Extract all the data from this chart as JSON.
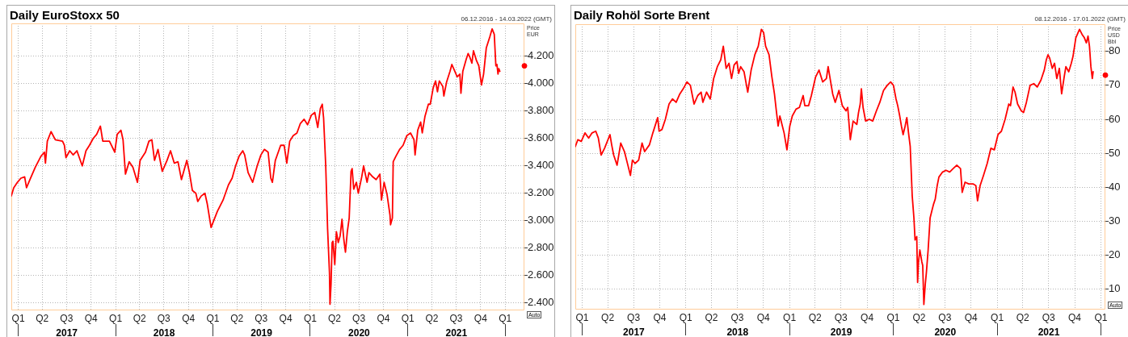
{
  "chart_data": [
    {
      "type": "line",
      "title": "Daily EuroStoxx 50",
      "subtitle": "06.12.2016 - 14.03.2022 (GMT)",
      "ylabel": "Price EUR",
      "annotations": [
        "Auto"
      ],
      "grid": true,
      "marker": "none",
      "line_style": "solid",
      "xlim": [
        "2016-12-06",
        "2022-03-14"
      ],
      "xticks": [
        {
          "value": "2017-01-01",
          "label": "Q1"
        },
        {
          "value": "2017-04-01",
          "label": "Q2"
        },
        {
          "value": "2017-07-01",
          "label": "Q3"
        },
        {
          "value": "2017-10-01",
          "label": "Q4"
        },
        {
          "value": "2018-01-01",
          "label": "Q1"
        },
        {
          "value": "2018-04-01",
          "label": "Q2"
        },
        {
          "value": "2018-07-01",
          "label": "Q3"
        },
        {
          "value": "2018-10-01",
          "label": "Q4"
        },
        {
          "value": "2019-01-01",
          "label": "Q1"
        },
        {
          "value": "2019-04-01",
          "label": "Q2"
        },
        {
          "value": "2019-07-01",
          "label": "Q3"
        },
        {
          "value": "2019-10-01",
          "label": "Q4"
        },
        {
          "value": "2020-01-01",
          "label": "Q1"
        },
        {
          "value": "2020-04-01",
          "label": "Q2"
        },
        {
          "value": "2020-07-01",
          "label": "Q3"
        },
        {
          "value": "2020-10-01",
          "label": "Q4"
        },
        {
          "value": "2021-01-01",
          "label": "Q1"
        },
        {
          "value": "2021-04-01",
          "label": "Q2"
        },
        {
          "value": "2021-07-01",
          "label": "Q3"
        },
        {
          "value": "2021-10-01",
          "label": "Q4"
        },
        {
          "value": "2022-01-01",
          "label": "Q1"
        }
      ],
      "x2lim": [
        "2016-12-06",
        "2022-03-14"
      ],
      "x2ticks": [
        {
          "value": "2017-01-01",
          "label": null
        },
        {
          "value": "2017-07-02",
          "label": "2017"
        },
        {
          "value": "2018-01-01",
          "label": null
        },
        {
          "value": "2018-07-02",
          "label": "2018"
        },
        {
          "value": "2019-01-01",
          "label": null
        },
        {
          "value": "2019-07-02",
          "label": "2019"
        },
        {
          "value": "2020-01-01",
          "label": null
        },
        {
          "value": "2020-07-02",
          "label": "2020"
        },
        {
          "value": "2021-01-01",
          "label": null
        },
        {
          "value": "2021-07-02",
          "label": "2021"
        },
        {
          "value": "2022-01-01",
          "label": null
        }
      ],
      "ylim": [
        2345,
        4440
      ],
      "yticks": [
        {
          "value": 2400,
          "label": "2.400"
        },
        {
          "value": 2600,
          "label": "2.600"
        },
        {
          "value": 2800,
          "label": "2.800"
        },
        {
          "value": 3000,
          "label": "3.000"
        },
        {
          "value": 3200,
          "label": "3.200"
        },
        {
          "value": 3400,
          "label": "3.400"
        },
        {
          "value": 3600,
          "label": "3.600"
        },
        {
          "value": 3800,
          "label": "3.800"
        },
        {
          "value": 4000,
          "label": "4.000"
        },
        {
          "value": 4200,
          "label": "4.200"
        }
      ],
      "x": [
        "2016-12-06",
        "2016-12-15",
        "2016-12-29",
        "2017-01-11",
        "2017-01-25",
        "2017-02-01",
        "2017-02-14",
        "2017-03-06",
        "2017-03-27",
        "2017-04-09",
        "2017-04-13",
        "2017-04-20",
        "2017-05-04",
        "2017-05-20",
        "2017-06-16",
        "2017-06-23",
        "2017-06-29",
        "2017-07-13",
        "2017-07-26",
        "2017-08-09",
        "2017-08-29",
        "2017-09-12",
        "2017-09-25",
        "2017-10-09",
        "2017-10-22",
        "2017-11-05",
        "2017-11-14",
        "2017-12-09",
        "2017-12-29",
        "2018-01-07",
        "2018-01-21",
        "2018-01-29",
        "2018-02-07",
        "2018-02-21",
        "2018-03-07",
        "2018-03-24",
        "2018-04-03",
        "2018-04-23",
        "2018-05-06",
        "2018-05-17",
        "2018-05-27",
        "2018-06-09",
        "2018-06-25",
        "2018-07-13",
        "2018-07-26",
        "2018-08-09",
        "2018-08-23",
        "2018-09-05",
        "2018-09-25",
        "2018-10-05",
        "2018-10-16",
        "2018-10-29",
        "2018-11-05",
        "2018-11-18",
        "2018-12-02",
        "2018-12-11",
        "2018-12-25",
        "2019-01-18",
        "2019-02-08",
        "2019-02-28",
        "2019-03-14",
        "2019-03-27",
        "2019-04-09",
        "2019-04-23",
        "2019-04-30",
        "2019-05-13",
        "2019-05-30",
        "2019-06-16",
        "2019-06-30",
        "2019-07-13",
        "2019-07-27",
        "2019-08-06",
        "2019-08-12",
        "2019-08-23",
        "2019-09-12",
        "2019-09-25",
        "2019-10-05",
        "2019-10-16",
        "2019-10-29",
        "2019-11-12",
        "2019-11-25",
        "2019-12-09",
        "2019-12-22",
        "2020-01-05",
        "2020-01-18",
        "2020-01-29",
        "2020-02-08",
        "2020-02-15",
        "2020-02-20",
        "2020-02-28",
        "2020-03-06",
        "2020-03-13",
        "2020-03-15",
        "2020-03-19",
        "2020-03-23",
        "2020-03-26",
        "2020-04-02",
        "2020-04-08",
        "2020-04-15",
        "2020-04-22",
        "2020-04-29",
        "2020-05-06",
        "2020-05-12",
        "2020-05-19",
        "2020-05-26",
        "2020-06-02",
        "2020-06-06",
        "2020-06-12",
        "2020-06-22",
        "2020-06-29",
        "2020-07-12",
        "2020-07-19",
        "2020-08-01",
        "2020-08-08",
        "2020-08-22",
        "2020-09-04",
        "2020-09-18",
        "2020-09-24",
        "2020-10-04",
        "2020-10-15",
        "2020-10-26",
        "2020-10-28",
        "2020-11-04",
        "2020-11-07",
        "2020-11-17",
        "2020-12-01",
        "2020-12-14",
        "2020-12-28",
        "2021-01-11",
        "2021-01-24",
        "2021-01-28",
        "2021-02-07",
        "2021-02-18",
        "2021-02-24",
        "2021-03-06",
        "2021-03-19",
        "2021-03-26",
        "2021-04-06",
        "2021-04-15",
        "2021-04-22",
        "2021-04-29",
        "2021-05-12",
        "2021-05-16",
        "2021-05-26",
        "2021-06-08",
        "2021-06-15",
        "2021-06-26",
        "2021-07-05",
        "2021-07-15",
        "2021-07-19",
        "2021-07-26",
        "2021-08-08",
        "2021-08-15",
        "2021-08-22",
        "2021-08-29",
        "2021-09-04",
        "2021-09-15",
        "2021-09-24",
        "2021-10-04",
        "2021-10-12",
        "2021-10-22",
        "2021-11-04",
        "2021-11-13",
        "2021-11-21",
        "2021-11-27",
        "2021-12-01",
        "2021-12-05",
        "2021-12-08",
        "2021-12-12"
      ],
      "series": [
        {
          "color": "#ff0000",
          "values": [
            3180,
            3240,
            3280,
            3310,
            3320,
            3240,
            3300,
            3390,
            3470,
            3500,
            3420,
            3580,
            3650,
            3590,
            3580,
            3550,
            3460,
            3510,
            3480,
            3510,
            3400,
            3510,
            3550,
            3600,
            3630,
            3690,
            3580,
            3580,
            3500,
            3630,
            3660,
            3590,
            3340,
            3430,
            3390,
            3280,
            3440,
            3500,
            3580,
            3590,
            3440,
            3520,
            3360,
            3440,
            3510,
            3420,
            3430,
            3300,
            3440,
            3350,
            3220,
            3200,
            3140,
            3180,
            3200,
            3120,
            2950,
            3070,
            3150,
            3260,
            3310,
            3400,
            3470,
            3510,
            3480,
            3350,
            3280,
            3400,
            3480,
            3520,
            3500,
            3310,
            3280,
            3440,
            3550,
            3550,
            3420,
            3580,
            3620,
            3640,
            3710,
            3740,
            3700,
            3770,
            3790,
            3680,
            3820,
            3850,
            3750,
            3400,
            2940,
            2620,
            2390,
            2540,
            2840,
            2850,
            2680,
            2920,
            2840,
            2890,
            3010,
            2860,
            2770,
            2920,
            3020,
            3360,
            3380,
            3230,
            3280,
            3200,
            3320,
            3400,
            3280,
            3350,
            3320,
            3300,
            3340,
            3150,
            3280,
            3190,
            3040,
            2970,
            3020,
            3430,
            3470,
            3520,
            3550,
            3620,
            3640,
            3590,
            3480,
            3660,
            3720,
            3640,
            3760,
            3850,
            3850,
            3970,
            4020,
            3940,
            4020,
            3980,
            3910,
            4010,
            4090,
            4140,
            4090,
            4050,
            4070,
            3930,
            4090,
            4180,
            4220,
            4190,
            4150,
            4240,
            4170,
            4130,
            3990,
            4070,
            4260,
            4340,
            4400,
            4360,
            4130,
            4140,
            4070,
            4110,
            4090
          ]
        },
        {
          "type": "scatter",
          "marker": "circle",
          "color": "#ff0000",
          "x": [
            "2022-03-14"
          ],
          "values": [
            4130
          ]
        }
      ]
    },
    {
      "type": "line",
      "title": "Daily Rohöl Sorte Brent",
      "subtitle": "08.12.2016 - 17.01.2022 (GMT)",
      "ylabel": "Price USD Bbl",
      "annotations": [
        "Auto"
      ],
      "grid": true,
      "marker": "none",
      "line_style": "solid",
      "xlim": [
        "2016-12-08",
        "2022-01-17"
      ],
      "xticks": [
        {
          "value": "2017-01-01",
          "label": "Q1"
        },
        {
          "value": "2017-04-01",
          "label": "Q2"
        },
        {
          "value": "2017-07-01",
          "label": "Q3"
        },
        {
          "value": "2017-10-01",
          "label": "Q4"
        },
        {
          "value": "2018-01-01",
          "label": "Q1"
        },
        {
          "value": "2018-04-01",
          "label": "Q2"
        },
        {
          "value": "2018-07-01",
          "label": "Q3"
        },
        {
          "value": "2018-10-01",
          "label": "Q4"
        },
        {
          "value": "2019-01-01",
          "label": "Q1"
        },
        {
          "value": "2019-04-01",
          "label": "Q2"
        },
        {
          "value": "2019-07-01",
          "label": "Q3"
        },
        {
          "value": "2019-10-01",
          "label": "Q4"
        },
        {
          "value": "2020-01-01",
          "label": "Q1"
        },
        {
          "value": "2020-04-01",
          "label": "Q2"
        },
        {
          "value": "2020-07-01",
          "label": "Q3"
        },
        {
          "value": "2020-10-01",
          "label": "Q4"
        },
        {
          "value": "2021-01-01",
          "label": "Q1"
        },
        {
          "value": "2021-04-01",
          "label": "Q2"
        },
        {
          "value": "2021-07-01",
          "label": "Q3"
        },
        {
          "value": "2021-10-01",
          "label": "Q4"
        },
        {
          "value": "2022-01-01",
          "label": "Q1"
        }
      ],
      "x2lim": [
        "2016-12-08",
        "2022-01-17"
      ],
      "x2ticks": [
        {
          "value": "2017-01-01",
          "label": null
        },
        {
          "value": "2017-07-02",
          "label": "2017"
        },
        {
          "value": "2018-01-01",
          "label": null
        },
        {
          "value": "2018-07-02",
          "label": "2018"
        },
        {
          "value": "2019-01-01",
          "label": null
        },
        {
          "value": "2019-07-02",
          "label": "2019"
        },
        {
          "value": "2020-01-01",
          "label": null
        },
        {
          "value": "2020-07-02",
          "label": "2020"
        },
        {
          "value": "2021-01-01",
          "label": null
        },
        {
          "value": "2021-07-02",
          "label": "2021"
        },
        {
          "value": "2022-01-01",
          "label": null
        }
      ],
      "ylim": [
        4,
        88
      ],
      "yticks": [
        10,
        20,
        30,
        40,
        50,
        60,
        70,
        80
      ],
      "x": [
        "2016-12-08",
        "2016-12-17",
        "2016-12-29",
        "2017-01-11",
        "2017-01-24",
        "2017-02-05",
        "2017-02-18",
        "2017-02-27",
        "2017-03-09",
        "2017-03-21",
        "2017-04-09",
        "2017-04-15",
        "2017-04-22",
        "2017-05-04",
        "2017-05-17",
        "2017-05-30",
        "2017-06-11",
        "2017-06-20",
        "2017-06-27",
        "2017-07-06",
        "2017-07-19",
        "2017-07-31",
        "2017-08-09",
        "2017-08-26",
        "2017-09-07",
        "2017-09-24",
        "2017-09-29",
        "2017-10-09",
        "2017-10-21",
        "2017-11-03",
        "2017-11-15",
        "2017-11-28",
        "2017-12-11",
        "2017-12-23",
        "2018-01-05",
        "2018-01-17",
        "2018-01-30",
        "2018-02-12",
        "2018-02-24",
        "2018-03-02",
        "2018-03-15",
        "2018-03-28",
        "2018-04-09",
        "2018-04-22",
        "2018-05-04",
        "2018-05-13",
        "2018-05-23",
        "2018-06-02",
        "2018-06-11",
        "2018-06-20",
        "2018-06-30",
        "2018-07-06",
        "2018-07-13",
        "2018-07-25",
        "2018-08-07",
        "2018-08-19",
        "2018-09-01",
        "2018-09-13",
        "2018-09-24",
        "2018-10-02",
        "2018-10-09",
        "2018-10-21",
        "2018-10-31",
        "2018-11-09",
        "2018-11-15",
        "2018-11-22",
        "2018-11-28",
        "2018-12-04",
        "2018-12-13",
        "2018-12-23",
        "2019-01-02",
        "2019-01-11",
        "2019-01-24",
        "2019-02-05",
        "2019-02-18",
        "2019-02-24",
        "2019-03-09",
        "2019-03-19",
        "2019-04-03",
        "2019-04-15",
        "2019-04-28",
        "2019-05-11",
        "2019-05-17",
        "2019-05-23",
        "2019-06-02",
        "2019-06-11",
        "2019-06-24",
        "2019-07-06",
        "2019-07-19",
        "2019-07-25",
        "2019-08-03",
        "2019-08-13",
        "2019-08-26",
        "2019-09-01",
        "2019-09-07",
        "2019-09-11",
        "2019-09-17",
        "2019-09-26",
        "2019-10-09",
        "2019-10-21",
        "2019-11-03",
        "2019-11-15",
        "2019-11-28",
        "2019-12-11",
        "2019-12-23",
        "2020-01-02",
        "2020-01-11",
        "2020-01-17",
        "2020-01-24",
        "2020-01-30",
        "2020-02-05",
        "2020-02-12",
        "2020-02-18",
        "2020-02-24",
        "2020-03-01",
        "2020-03-08",
        "2020-03-14",
        "2020-03-18",
        "2020-03-24",
        "2020-03-27",
        "2020-03-30",
        "2020-04-04",
        "2020-04-11",
        "2020-04-14",
        "2020-04-18",
        "2020-04-23",
        "2020-04-27",
        "2020-05-03",
        "2020-05-10",
        "2020-05-16",
        "2020-05-22",
        "2020-05-28",
        "2020-06-04",
        "2020-06-10",
        "2020-06-23",
        "2020-07-05",
        "2020-07-18",
        "2020-07-30",
        "2020-08-12",
        "2020-08-25",
        "2020-08-31",
        "2020-09-10",
        "2020-09-23",
        "2020-10-08",
        "2020-10-18",
        "2020-10-24",
        "2020-11-02",
        "2020-11-14",
        "2020-11-27",
        "2020-12-10",
        "2020-12-22",
        "2021-01-04",
        "2021-01-16",
        "2021-01-29",
        "2021-02-11",
        "2021-02-17",
        "2021-02-26",
        "2021-03-05",
        "2021-03-14",
        "2021-03-27",
        "2021-04-04",
        "2021-04-14",
        "2021-04-27",
        "2021-05-10",
        "2021-05-22",
        "2021-06-04",
        "2021-06-16",
        "2021-06-23",
        "2021-06-29",
        "2021-07-05",
        "2021-07-14",
        "2021-07-22",
        "2021-07-30",
        "2021-08-08",
        "2021-08-16",
        "2021-08-25",
        "2021-08-31",
        "2021-09-10",
        "2021-09-19",
        "2021-09-25",
        "2021-10-05",
        "2021-10-18",
        "2021-10-27",
        "2021-11-04",
        "2021-11-11",
        "2021-11-17",
        "2021-11-22",
        "2021-11-27",
        "2021-12-02",
        "2021-12-05"
      ],
      "series": [
        {
          "color": "#ff0000",
          "values": [
            52,
            54,
            53.5,
            56,
            54.5,
            56,
            56.5,
            54.5,
            49.5,
            51.5,
            55.5,
            52.5,
            49.5,
            46.5,
            53,
            50.5,
            46.5,
            43.5,
            48,
            47,
            48,
            53,
            50.5,
            52.5,
            56,
            60.5,
            56.5,
            57,
            60,
            64.5,
            66,
            65,
            67.5,
            69,
            71,
            70,
            64.5,
            67,
            68,
            65,
            68,
            66,
            72,
            75.5,
            77.5,
            81.5,
            75,
            76.5,
            72,
            76,
            77,
            73.5,
            75.5,
            74,
            68,
            74.5,
            79,
            81.5,
            86.5,
            85.5,
            81.5,
            79,
            72.5,
            67.5,
            63,
            58,
            61,
            59,
            56,
            51,
            58,
            61,
            63,
            63.5,
            67,
            64,
            64,
            67,
            72.5,
            74.5,
            71,
            72,
            75.5,
            72.5,
            67.5,
            65,
            68.5,
            64,
            62.5,
            63.5,
            54,
            59.5,
            58.5,
            62,
            64.5,
            69,
            63.5,
            59.5,
            60,
            59.5,
            62.5,
            65,
            68.5,
            70,
            71,
            70,
            66,
            64,
            61,
            58,
            55.5,
            58,
            60.5,
            56,
            52,
            37.5,
            31,
            24.5,
            25.5,
            12,
            18,
            21.5,
            18,
            17,
            5.5,
            11.5,
            15,
            21.5,
            31,
            33,
            35,
            36.5,
            40.5,
            43,
            44.5,
            45,
            44.5,
            45.5,
            46.5,
            45.5,
            38.5,
            41.5,
            41,
            41,
            40.5,
            36,
            40.5,
            43.5,
            47,
            51.5,
            51,
            55.5,
            56.5,
            60,
            64.5,
            64,
            69.5,
            68,
            64.5,
            62.5,
            62,
            65,
            70,
            70.5,
            69.5,
            71.5,
            74.5,
            77.5,
            79,
            78,
            75,
            76.5,
            72,
            75,
            67.5,
            72.5,
            75.5,
            74,
            76.5,
            78.5,
            84,
            86.5,
            85,
            84,
            82.5,
            84.5,
            81.5,
            75.5,
            72,
            74
          ]
        },
        {
          "type": "scatter",
          "marker": "circle",
          "color": "#ff0000",
          "x": [
            "2022-01-17"
          ],
          "values": [
            73
          ]
        }
      ]
    }
  ]
}
